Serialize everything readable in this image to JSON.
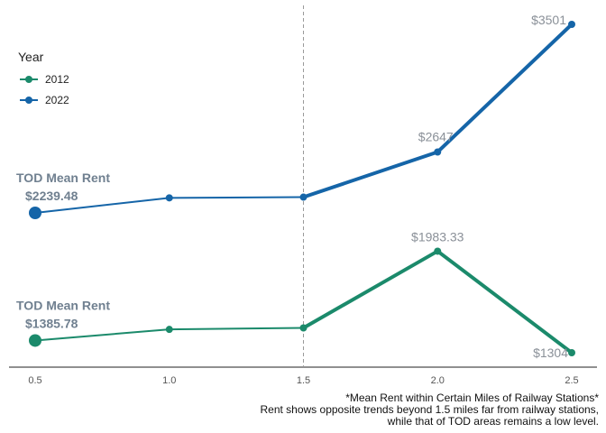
{
  "chart_data": {
    "type": "line",
    "x": [
      0.5,
      1.0,
      1.5,
      2.0,
      2.5
    ],
    "x_ticks": [
      "0.5",
      "1.0",
      "1.5",
      "2.0",
      "2.5"
    ],
    "xlim": [
      0.5,
      2.5
    ],
    "ylim": [
      1304,
      3501
    ],
    "y_axis_shown": false,
    "grid": false,
    "reference_line": {
      "x": 1.5,
      "style": "dashed"
    },
    "legend": {
      "title": "Year",
      "position": "top-left"
    },
    "series": [
      {
        "name": "2012",
        "color": "#1b8a6b",
        "values": [
          1385.78,
          1460,
          1470,
          1983.33,
          1304
        ]
      },
      {
        "name": "2022",
        "color": "#1565a8",
        "values": [
          2239.48,
          2340,
          2345,
          2647,
          3501
        ]
      }
    ],
    "annotations": {
      "tod_2022": {
        "title": "TOD Mean Rent",
        "value": "$2239.48"
      },
      "tod_2012": {
        "title": "TOD Mean Rent",
        "value": "$1385.78"
      },
      "labels_2022": [
        {
          "x": 2.0,
          "text": "$2647"
        },
        {
          "x": 2.5,
          "text": "$3501"
        }
      ],
      "labels_2012": [
        {
          "x": 2.0,
          "text": "$1983.33"
        },
        {
          "x": 2.5,
          "text": "$1304"
        }
      ]
    },
    "caption": [
      "*Mean Rent within Certain Miles of Railway Stations*",
      "Rent shows opposite trends beyond 1.5 miles far from railway stations,",
      "while that of TOD areas remains a low level."
    ]
  }
}
